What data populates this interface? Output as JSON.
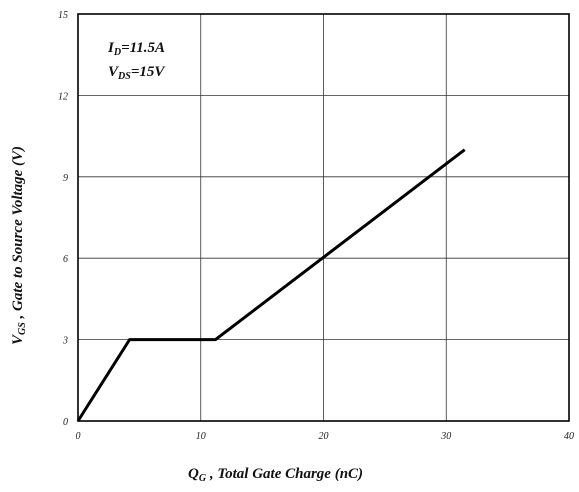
{
  "chart_data": {
    "type": "line",
    "x_ticks": [
      "0",
      "10",
      "20",
      "30",
      "40"
    ],
    "y_ticks": [
      "0",
      "3",
      "6",
      "9",
      "12",
      "15"
    ],
    "xlim": [
      0,
      40
    ],
    "ylim": [
      0,
      15
    ],
    "grid": true,
    "xlabel": {
      "main": "Q",
      "sub": "G",
      "rest": " , Total Gate Charge (nC)"
    },
    "ylabel": {
      "main": "V",
      "sub": "GS",
      "rest": " , Gate to Source Voltage (V)"
    },
    "annotations": [
      {
        "main": "I",
        "sub": "D",
        "rest": "=11.5A"
      },
      {
        "main": "V",
        "sub": "DS",
        "rest": "=15V"
      }
    ],
    "series": [
      {
        "x": [
          0,
          4.2,
          11.2,
          31.5
        ],
        "y": [
          0,
          3.0,
          3.0,
          10.0
        ],
        "color": "#000000"
      }
    ]
  }
}
